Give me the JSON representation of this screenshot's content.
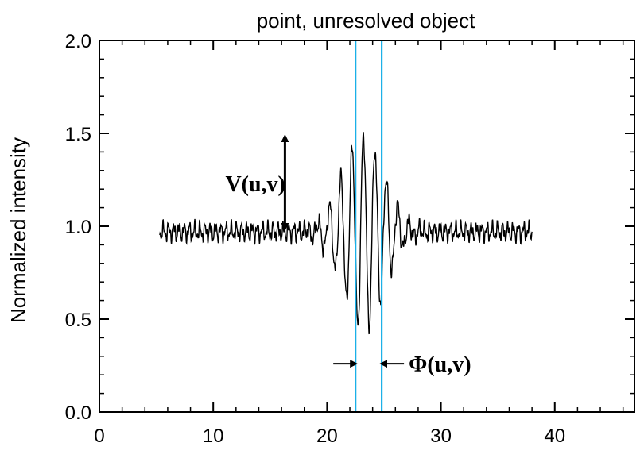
{
  "chart_data": {
    "type": "line",
    "title": "point, unresolved object",
    "xlabel": "",
    "ylabel": "Normalized intensity",
    "xlim": [
      0,
      47
    ],
    "ylim": [
      0.0,
      2.0
    ],
    "x_ticks": [
      0,
      10,
      20,
      30,
      40
    ],
    "y_ticks": [
      0.0,
      0.5,
      1.0,
      1.5,
      2.0
    ],
    "x_tick_labels": [
      "0",
      "10",
      "20",
      "30",
      "40"
    ],
    "y_tick_labels": [
      "0.0",
      "0.5",
      "1.0",
      "1.5",
      "2.0"
    ],
    "grid": false,
    "series": [
      {
        "color": "#000000",
        "x_range": [
          5.3,
          38.0
        ],
        "center": 23.2,
        "baseline": 0.97,
        "fringe_period": 1.0,
        "envelope_amplitude": 0.52,
        "envelope_width": 2.6,
        "noise_amplitude": 0.035
      }
    ],
    "annotations": {
      "visibility": {
        "label": "V(u,v)",
        "arrow_x": 16.3,
        "arrow_y": [
          0.97,
          1.5
        ],
        "label_x": 13.7,
        "label_y": 1.23
      },
      "phase": {
        "label": "Φ(u,v)",
        "line_positions": [
          22.5,
          24.8
        ],
        "line_color": "#1ab0e8",
        "label_y": 0.26
      }
    }
  }
}
